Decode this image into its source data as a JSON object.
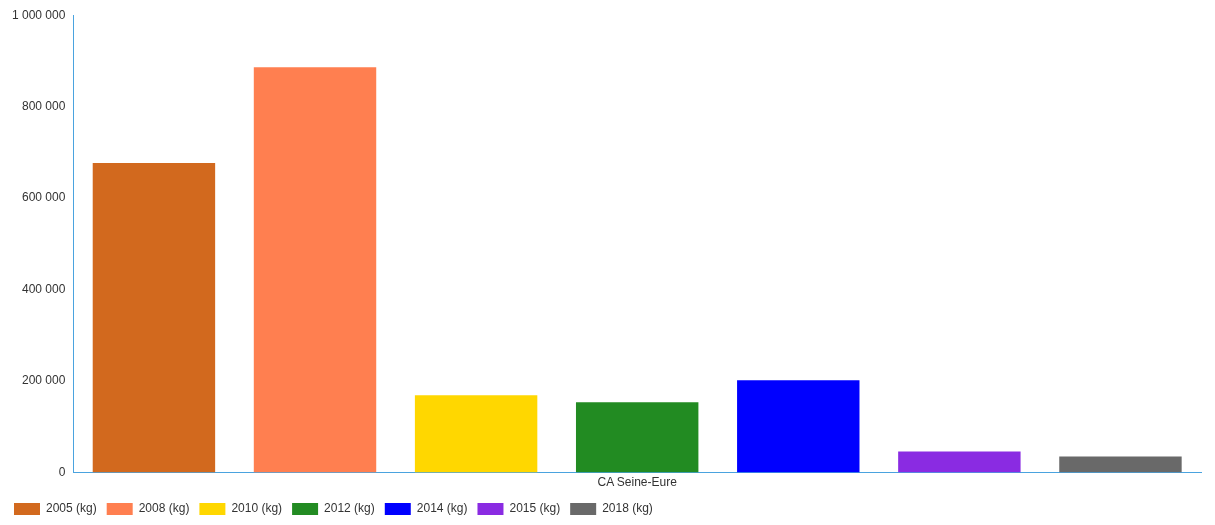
{
  "chart_data": {
    "type": "bar",
    "categories": [
      "CA Seine-Eure"
    ],
    "series": [
      {
        "name": "2005 (kg)",
        "color": "#d2691e",
        "values": [
          677000
        ]
      },
      {
        "name": "2008 (kg)",
        "color": "#ff7f50",
        "values": [
          886000
        ]
      },
      {
        "name": "2010 (kg)",
        "color": "#ffd700",
        "values": [
          169000
        ]
      },
      {
        "name": "2012 (kg)",
        "color": "#228b22",
        "values": [
          154000
        ]
      },
      {
        "name": "2014 (kg)",
        "color": "#0000ff",
        "values": [
          202000
        ]
      },
      {
        "name": "2015 (kg)",
        "color": "#8a2be2",
        "values": [
          46000
        ]
      },
      {
        "name": "2018 (kg)",
        "color": "#696969",
        "values": [
          35000
        ]
      }
    ],
    "ylim": [
      0,
      1000000
    ],
    "yticks": [
      {
        "value": 0,
        "label": "0"
      },
      {
        "value": 200000,
        "label": "200 000"
      },
      {
        "value": 400000,
        "label": "400 000"
      },
      {
        "value": 600000,
        "label": "600 000"
      },
      {
        "value": 800000,
        "label": "800 000"
      },
      {
        "value": 1000000,
        "label": "1 000 000"
      }
    ],
    "grid": false,
    "legend": "bottom left"
  }
}
